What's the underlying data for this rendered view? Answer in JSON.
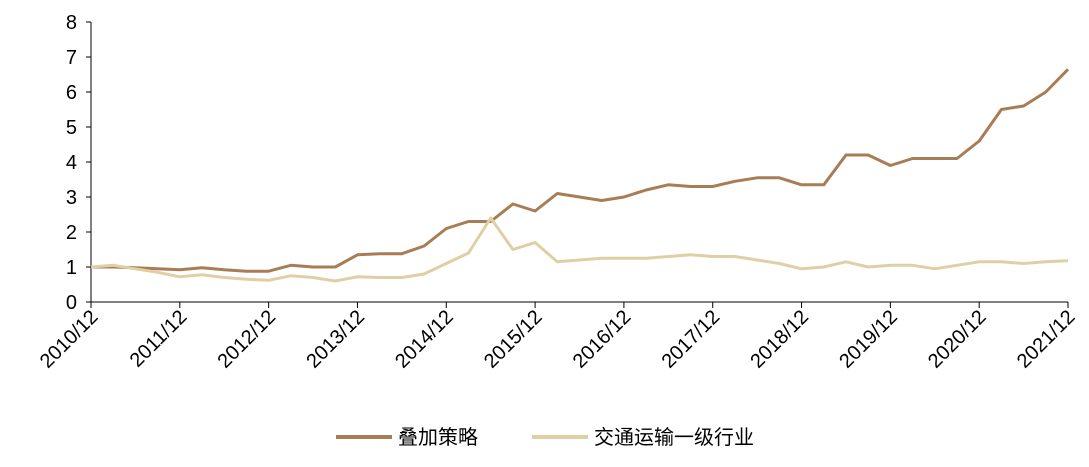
{
  "chart_data": {
    "type": "line",
    "x": [
      "2010/12",
      "2011/03",
      "2011/06",
      "2011/09",
      "2011/12",
      "2012/03",
      "2012/06",
      "2012/09",
      "2012/12",
      "2013/03",
      "2013/06",
      "2013/09",
      "2013/12",
      "2014/03",
      "2014/06",
      "2014/09",
      "2014/12",
      "2015/03",
      "2015/06",
      "2015/09",
      "2015/12",
      "2016/03",
      "2016/06",
      "2016/09",
      "2016/12",
      "2017/03",
      "2017/06",
      "2017/09",
      "2017/12",
      "2018/03",
      "2018/06",
      "2018/09",
      "2018/12",
      "2019/03",
      "2019/06",
      "2019/09",
      "2019/12",
      "2020/03",
      "2020/06",
      "2020/09",
      "2020/12",
      "2021/03",
      "2021/06",
      "2021/09",
      "2021/12"
    ],
    "xticks": [
      "2010/12",
      "2011/12",
      "2012/12",
      "2013/12",
      "2014/12",
      "2015/12",
      "2016/12",
      "2017/12",
      "2018/12",
      "2019/12",
      "2020/12",
      "2021/12"
    ],
    "series": [
      {
        "name": "叠加策略",
        "color": "#a87d55",
        "values": [
          1.0,
          1.0,
          0.98,
          0.95,
          0.92,
          0.98,
          0.92,
          0.88,
          0.88,
          1.05,
          1.0,
          1.0,
          1.35,
          1.38,
          1.38,
          1.6,
          2.1,
          2.3,
          2.3,
          2.8,
          2.6,
          3.1,
          3.0,
          2.9,
          3.0,
          3.2,
          3.35,
          3.3,
          3.3,
          3.45,
          3.55,
          3.55,
          3.35,
          3.35,
          4.2,
          4.2,
          3.9,
          4.1,
          4.1,
          4.1,
          4.6,
          5.5,
          5.6,
          6.0,
          6.65
        ]
      },
      {
        "name": "交通运输一级行业",
        "color": "#e0cfa4",
        "values": [
          1.0,
          1.05,
          0.95,
          0.85,
          0.72,
          0.78,
          0.7,
          0.65,
          0.62,
          0.75,
          0.7,
          0.6,
          0.72,
          0.7,
          0.7,
          0.8,
          1.1,
          1.4,
          2.4,
          1.5,
          1.7,
          1.15,
          1.2,
          1.25,
          1.25,
          1.25,
          1.3,
          1.35,
          1.3,
          1.3,
          1.2,
          1.1,
          0.95,
          1.0,
          1.15,
          1.0,
          1.05,
          1.05,
          0.95,
          1.05,
          1.15,
          1.15,
          1.1,
          1.15,
          1.18
        ]
      }
    ],
    "ylim": [
      0,
      8
    ],
    "yticks": [
      0,
      1,
      2,
      3,
      4,
      5,
      6,
      7,
      8
    ],
    "grid": false,
    "legend": "bottom"
  }
}
